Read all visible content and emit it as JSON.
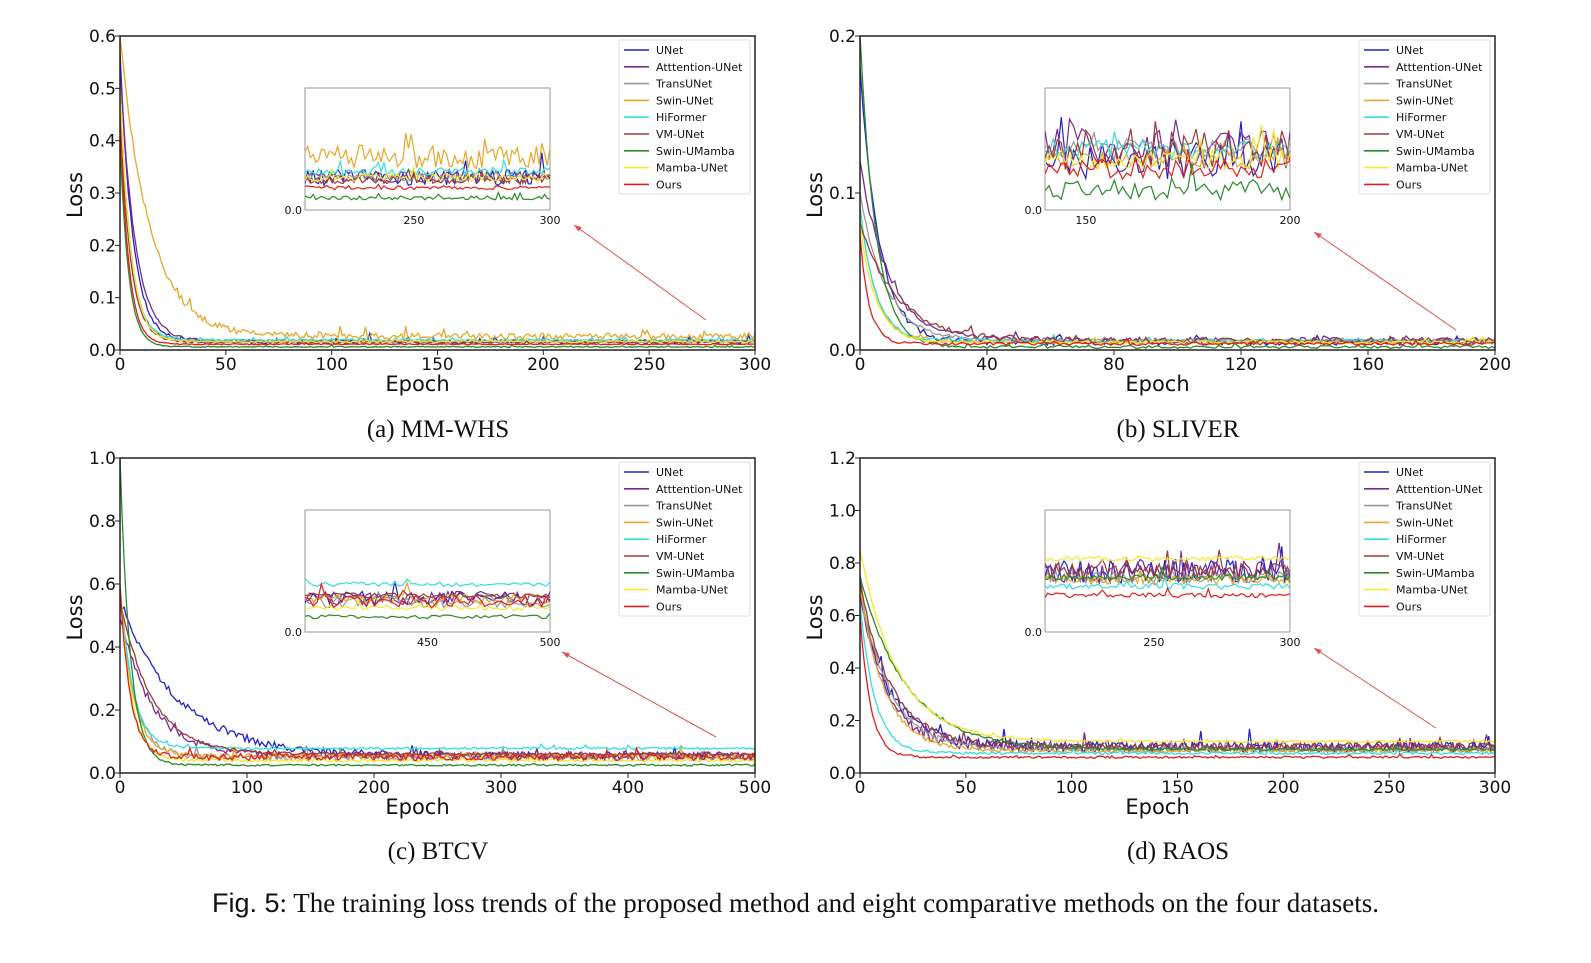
{
  "figure": {
    "caption_label": "Fig. 5",
    "caption_text": ": The training loss trends of the proposed method and eight comparative methods on the four datasets."
  },
  "legend": [
    {
      "name": "UNet",
      "color": "#2222cc"
    },
    {
      "name": "Atttention-UNet",
      "color": "#7b2a8f"
    },
    {
      "name": "TransUNet",
      "color": "#999999"
    },
    {
      "name": "Swin-UNet",
      "color": "#e8a628"
    },
    {
      "name": "HiFormer",
      "color": "#33dede"
    },
    {
      "name": "VM-UNet",
      "color": "#9b3a3a"
    },
    {
      "name": "Swin-UMamba",
      "color": "#2a8a2a"
    },
    {
      "name": "Mamba-UNet",
      "color": "#f5e82a"
    },
    {
      "name": "Ours",
      "color": "#e02020"
    }
  ],
  "chart_data": [
    {
      "type": "line",
      "subcaption": "(a) MM-WHS",
      "xlabel": "Epoch",
      "ylabel": "Loss",
      "xlim": [
        0,
        300
      ],
      "ylim": [
        0,
        0.6
      ],
      "xticks": [
        "0",
        "50",
        "100",
        "150",
        "200",
        "250",
        "300"
      ],
      "yticks": [
        "0.0",
        "0.1",
        "0.2",
        "0.3",
        "0.4",
        "0.5",
        "0.6"
      ],
      "legend_position": "top-right",
      "inset": {
        "xlim": [
          210,
          300
        ],
        "ylim": [
          0,
          0.06
        ],
        "xticks": [
          "250",
          "300"
        ],
        "ytick": "0.0"
      },
      "series": [
        {
          "name": "UNet",
          "start": 0.57,
          "end": 0.016,
          "tau": 6,
          "noise": 0.004
        },
        {
          "name": "Atttention-UNet",
          "start": 0.55,
          "end": 0.016,
          "tau": 7,
          "noise": 0.003
        },
        {
          "name": "TransUNet",
          "start": 0.5,
          "end": 0.016,
          "tau": 5,
          "noise": 0.002
        },
        {
          "name": "Swin-UNet",
          "start": 0.6,
          "end": 0.026,
          "tau": 14,
          "noise": 0.006
        },
        {
          "name": "HiFormer",
          "start": 0.5,
          "end": 0.019,
          "tau": 5,
          "noise": 0.002
        },
        {
          "name": "VM-UNet",
          "start": 0.45,
          "end": 0.015,
          "tau": 5,
          "noise": 0.002
        },
        {
          "name": "Swin-UMamba",
          "start": 0.4,
          "end": 0.006,
          "tau": 4,
          "noise": 0.001
        },
        {
          "name": "Mamba-UNet",
          "start": 0.5,
          "end": 0.016,
          "tau": 5,
          "noise": 0.002
        },
        {
          "name": "Ours",
          "start": 0.45,
          "end": 0.011,
          "tau": 4,
          "noise": 0.001
        }
      ]
    },
    {
      "type": "line",
      "subcaption": "(b) SLIVER",
      "xlabel": "Epoch",
      "ylabel": "Loss",
      "xlim": [
        0,
        200
      ],
      "ylim": [
        0,
        0.2
      ],
      "xticks": [
        "0",
        "40",
        "80",
        "120",
        "160",
        "200"
      ],
      "yticks": [
        "0.0",
        "0.1",
        "0.2"
      ],
      "legend_position": "top-right",
      "inset": {
        "xlim": [
          140,
          200
        ],
        "ylim": [
          0,
          0.012
        ],
        "xticks": [
          "150",
          "200"
        ],
        "ytick": "0.0"
      },
      "series": [
        {
          "name": "UNet",
          "start": 0.18,
          "end": 0.005,
          "tau": 6,
          "noise": 0.002
        },
        {
          "name": "Atttention-UNet",
          "start": 0.12,
          "end": 0.006,
          "tau": 9,
          "noise": 0.002
        },
        {
          "name": "TransUNet",
          "start": 0.1,
          "end": 0.006,
          "tau": 8,
          "noise": 0.001
        },
        {
          "name": "Swin-UNet",
          "start": 0.09,
          "end": 0.005,
          "tau": 5,
          "noise": 0.001
        },
        {
          "name": "HiFormer",
          "start": 0.09,
          "end": 0.006,
          "tau": 5,
          "noise": 0.001
        },
        {
          "name": "VM-UNet",
          "start": 0.08,
          "end": 0.006,
          "tau": 12,
          "noise": 0.002
        },
        {
          "name": "Swin-UMamba",
          "start": 0.2,
          "end": 0.002,
          "tau": 5,
          "noise": 0.001
        },
        {
          "name": "Mamba-UNet",
          "start": 0.08,
          "end": 0.005,
          "tau": 5,
          "noise": 0.001
        },
        {
          "name": "Ours",
          "start": 0.07,
          "end": 0.004,
          "tau": 3,
          "noise": 0.001
        }
      ]
    },
    {
      "type": "line",
      "subcaption": "(c) BTCV",
      "xlabel": "Epoch",
      "ylabel": "Loss",
      "xlim": [
        0,
        500
      ],
      "ylim": [
        0,
        1.0
      ],
      "xticks": [
        "0",
        "100",
        "200",
        "300",
        "400",
        "500"
      ],
      "yticks": [
        "0.0",
        "0.2",
        "0.4",
        "0.6",
        "0.8",
        "1.0"
      ],
      "legend_position": "top-right",
      "inset": {
        "xlim": [
          400,
          500
        ],
        "ylim": [
          0,
          0.2
        ],
        "xticks": [
          "450",
          "500"
        ],
        "ytick": "0.0"
      },
      "series": [
        {
          "name": "UNet",
          "start": 0.55,
          "end": 0.055,
          "tau": 45,
          "noise": 0.012
        },
        {
          "name": "Atttention-UNet",
          "start": 0.5,
          "end": 0.055,
          "tau": 25,
          "noise": 0.012
        },
        {
          "name": "TransUNet",
          "start": 0.55,
          "end": 0.05,
          "tau": 12,
          "noise": 0.01
        },
        {
          "name": "Swin-UNet",
          "start": 0.6,
          "end": 0.055,
          "tau": 10,
          "noise": 0.008
        },
        {
          "name": "HiFormer",
          "start": 0.6,
          "end": 0.078,
          "tau": 10,
          "noise": 0.004
        },
        {
          "name": "VM-UNet",
          "start": 0.55,
          "end": 0.06,
          "tau": 25,
          "noise": 0.004
        },
        {
          "name": "Swin-UMamba",
          "start": 1.0,
          "end": 0.025,
          "tau": 8,
          "noise": 0.003
        },
        {
          "name": "Mamba-UNet",
          "start": 0.6,
          "end": 0.04,
          "tau": 9,
          "noise": 0.005
        },
        {
          "name": "Ours",
          "start": 0.6,
          "end": 0.05,
          "tau": 8,
          "noise": 0.01
        }
      ]
    },
    {
      "type": "line",
      "subcaption": "(d) RAOS",
      "xlabel": "Epoch",
      "ylabel": "Loss",
      "xlim": [
        0,
        300
      ],
      "ylim": [
        0,
        1.2
      ],
      "xticks": [
        "0",
        "50",
        "100",
        "150",
        "200",
        "250",
        "300"
      ],
      "yticks": [
        "0.0",
        "0.2",
        "0.4",
        "0.6",
        "0.8",
        "1.0",
        "1.2"
      ],
      "legend_position": "top-right",
      "inset": {
        "xlim": [
          210,
          300
        ],
        "ylim": [
          0,
          0.2
        ],
        "xticks": [
          "250",
          "300"
        ],
        "ytick": "0.0"
      },
      "series": [
        {
          "name": "UNet",
          "start": 0.65,
          "end": 0.1,
          "tau": 15,
          "noise": 0.02
        },
        {
          "name": "Atttention-UNet",
          "start": 0.72,
          "end": 0.1,
          "tau": 12,
          "noise": 0.02
        },
        {
          "name": "TransUNet",
          "start": 0.7,
          "end": 0.09,
          "tau": 14,
          "noise": 0.01
        },
        {
          "name": "Swin-UNet",
          "start": 0.7,
          "end": 0.085,
          "tau": 12,
          "noise": 0.008
        },
        {
          "name": "HiFormer",
          "start": 0.65,
          "end": 0.075,
          "tau": 7,
          "noise": 0.005
        },
        {
          "name": "VM-UNet",
          "start": 0.72,
          "end": 0.1,
          "tau": 15,
          "noise": 0.012
        },
        {
          "name": "Swin-UMamba",
          "start": 0.75,
          "end": 0.09,
          "tau": 22,
          "noise": 0.005
        },
        {
          "name": "Mamba-UNet",
          "start": 0.85,
          "end": 0.12,
          "tau": 18,
          "noise": 0.004
        },
        {
          "name": "Ours",
          "start": 0.6,
          "end": 0.06,
          "tau": 5,
          "noise": 0.004
        }
      ]
    }
  ]
}
